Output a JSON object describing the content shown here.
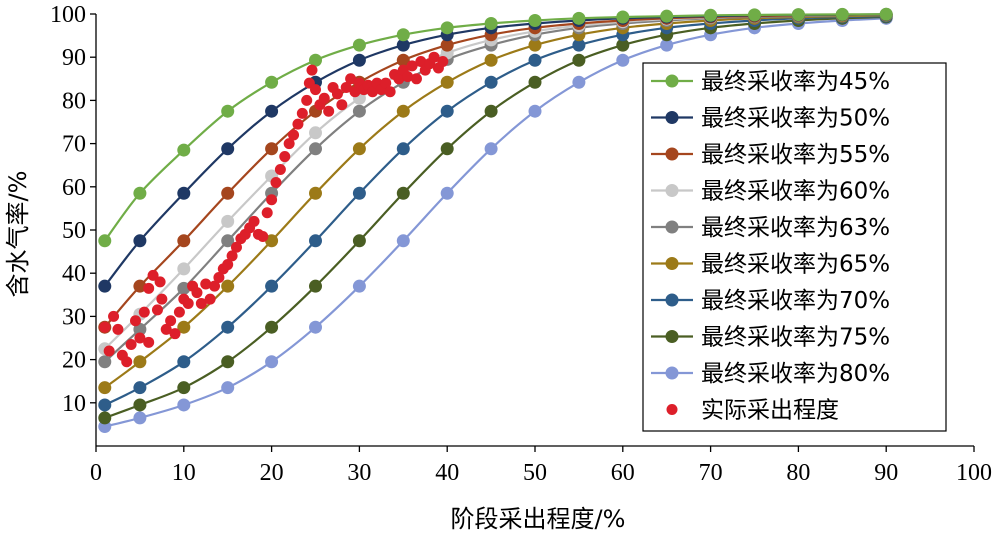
{
  "chart_data": {
    "type": "line",
    "xlabel": "阶段采出程度/%",
    "ylabel": "含水气率/%",
    "xlim": [
      0,
      100
    ],
    "ylim": [
      0,
      100
    ],
    "x_ticks": [
      0,
      10,
      20,
      30,
      40,
      50,
      60,
      70,
      80,
      90,
      100
    ],
    "y_ticks": [
      10,
      20,
      30,
      40,
      50,
      60,
      70,
      80,
      90,
      100
    ],
    "grid": false,
    "legend": "right",
    "x": [
      1,
      5,
      10,
      15,
      20,
      25,
      30,
      35,
      40,
      45,
      50,
      55,
      60,
      65,
      70,
      75,
      80,
      85,
      90
    ],
    "series": [
      {
        "name": "最终采收率为45%",
        "color": "#70ad47",
        "values": [
          47.5,
          58.5,
          68.5,
          77.5,
          84.2,
          89.3,
          92.8,
          95.2,
          96.8,
          97.8,
          98.5,
          99.0,
          99.3,
          99.5,
          99.7,
          99.8,
          99.85,
          99.9,
          99.95
        ]
      },
      {
        "name": "最终采收率为50%",
        "color": "#1f3864",
        "values": [
          37,
          47.5,
          58.5,
          68.8,
          77.5,
          84.2,
          89.3,
          92.8,
          95.2,
          96.8,
          97.8,
          98.5,
          99.0,
          99.3,
          99.5,
          99.7,
          99.8,
          99.85,
          99.9
        ]
      },
      {
        "name": "最终采收率为55%",
        "color": "#a5461e",
        "values": [
          27.5,
          37,
          47.5,
          58.5,
          68.8,
          77.5,
          84.2,
          89.3,
          92.8,
          95.2,
          96.8,
          97.8,
          98.5,
          99.0,
          99.3,
          99.5,
          99.7,
          99.8,
          99.85
        ]
      },
      {
        "name": "最终采收率为60%",
        "color": "#c8c8c8",
        "values": [
          22.5,
          30.5,
          41,
          52,
          62.5,
          72.5,
          80.5,
          86.5,
          91,
          94,
          96,
          97.3,
          98.2,
          98.8,
          99.2,
          99.5,
          99.7,
          99.8,
          99.85
        ]
      },
      {
        "name": "最终采收率为63%",
        "color": "#808080",
        "values": [
          19.5,
          27,
          36.5,
          47.5,
          58.5,
          68.8,
          77.5,
          84.2,
          89.5,
          92.8,
          95.2,
          96.8,
          97.8,
          98.5,
          99.0,
          99.3,
          99.5,
          99.7,
          99.8
        ]
      },
      {
        "name": "最终采收率为65%",
        "color": "#9c7a18",
        "values": [
          13.5,
          19.5,
          27.5,
          37,
          47.5,
          58.5,
          68.8,
          77.5,
          84.2,
          89.3,
          92.8,
          95.2,
          96.8,
          97.8,
          98.5,
          99.0,
          99.3,
          99.5,
          99.7
        ]
      },
      {
        "name": "最终采收率为70%",
        "color": "#2e5d8a",
        "values": [
          9.5,
          13.5,
          19.5,
          27.5,
          37,
          47.5,
          58.5,
          68.8,
          77.5,
          84.2,
          89.3,
          92.8,
          95.2,
          96.8,
          97.8,
          98.5,
          99.0,
          99.3,
          99.5
        ]
      },
      {
        "name": "最终采收率为75%",
        "color": "#4a5e23",
        "values": [
          6.5,
          9.5,
          13.5,
          19.5,
          27.5,
          37,
          47.5,
          58.5,
          68.8,
          77.5,
          84.2,
          89.3,
          92.8,
          95.2,
          96.8,
          97.8,
          98.5,
          99.0,
          99.3
        ]
      },
      {
        "name": "最终采收率为80%",
        "color": "#8497d6",
        "values": [
          4.5,
          6.5,
          9.5,
          13.5,
          19.5,
          27.5,
          37,
          47.5,
          58.5,
          68.8,
          77.5,
          84.2,
          89.3,
          92.8,
          95.2,
          96.8,
          97.8,
          98.5,
          99.0
        ]
      }
    ],
    "scatter": {
      "name": "实际采出程度",
      "color": "#dd1f2a",
      "points": [
        [
          1,
          27.5
        ],
        [
          1.5,
          22
        ],
        [
          2,
          30
        ],
        [
          2.5,
          27
        ],
        [
          3,
          21
        ],
        [
          3.5,
          19.5
        ],
        [
          4,
          23.5
        ],
        [
          4.5,
          29
        ],
        [
          5,
          25
        ],
        [
          5.5,
          31
        ],
        [
          6,
          24
        ],
        [
          6,
          36.5
        ],
        [
          6.5,
          39.5
        ],
        [
          7,
          31.5
        ],
        [
          7.3,
          38
        ],
        [
          7.5,
          34
        ],
        [
          8,
          27
        ],
        [
          8.5,
          29
        ],
        [
          9,
          26
        ],
        [
          9.5,
          31
        ],
        [
          10,
          34
        ],
        [
          10.5,
          33
        ],
        [
          11,
          37
        ],
        [
          11.5,
          35.5
        ],
        [
          12,
          33
        ],
        [
          12.5,
          37.5
        ],
        [
          13,
          34
        ],
        [
          13.5,
          37
        ],
        [
          14,
          39
        ],
        [
          14.5,
          41
        ],
        [
          15,
          42
        ],
        [
          15.5,
          44
        ],
        [
          16,
          46
        ],
        [
          16.5,
          48
        ],
        [
          17,
          49
        ],
        [
          17.5,
          50.5
        ],
        [
          18,
          52
        ],
        [
          18.5,
          49
        ],
        [
          19,
          48.5
        ],
        [
          19.5,
          54
        ],
        [
          20,
          57
        ],
        [
          20.5,
          61
        ],
        [
          21,
          64
        ],
        [
          21.5,
          67
        ],
        [
          22,
          70
        ],
        [
          22.5,
          72
        ],
        [
          23,
          74.5
        ],
        [
          23.5,
          77
        ],
        [
          24,
          80
        ],
        [
          24.3,
          84
        ],
        [
          24.6,
          87
        ],
        [
          25,
          82.5
        ],
        [
          25.5,
          79
        ],
        [
          26,
          80.5
        ],
        [
          26.5,
          77.5
        ],
        [
          27,
          83
        ],
        [
          27.5,
          81.5
        ],
        [
          28,
          79
        ],
        [
          28.5,
          83
        ],
        [
          29,
          85
        ],
        [
          29.5,
          82
        ],
        [
          30,
          84
        ],
        [
          30.5,
          82.5
        ],
        [
          31,
          83.5
        ],
        [
          31.5,
          82
        ],
        [
          32,
          84
        ],
        [
          32.5,
          82.5
        ],
        [
          33,
          84
        ],
        [
          33.5,
          82
        ],
        [
          34,
          86
        ],
        [
          34.5,
          85
        ],
        [
          35,
          87
        ],
        [
          35.5,
          85.5
        ],
        [
          36,
          88
        ],
        [
          36.5,
          85
        ],
        [
          37,
          89
        ],
        [
          37.5,
          87
        ],
        [
          38,
          88.5
        ],
        [
          38.5,
          90
        ],
        [
          39,
          87.5
        ],
        [
          39.5,
          89
        ]
      ]
    }
  }
}
